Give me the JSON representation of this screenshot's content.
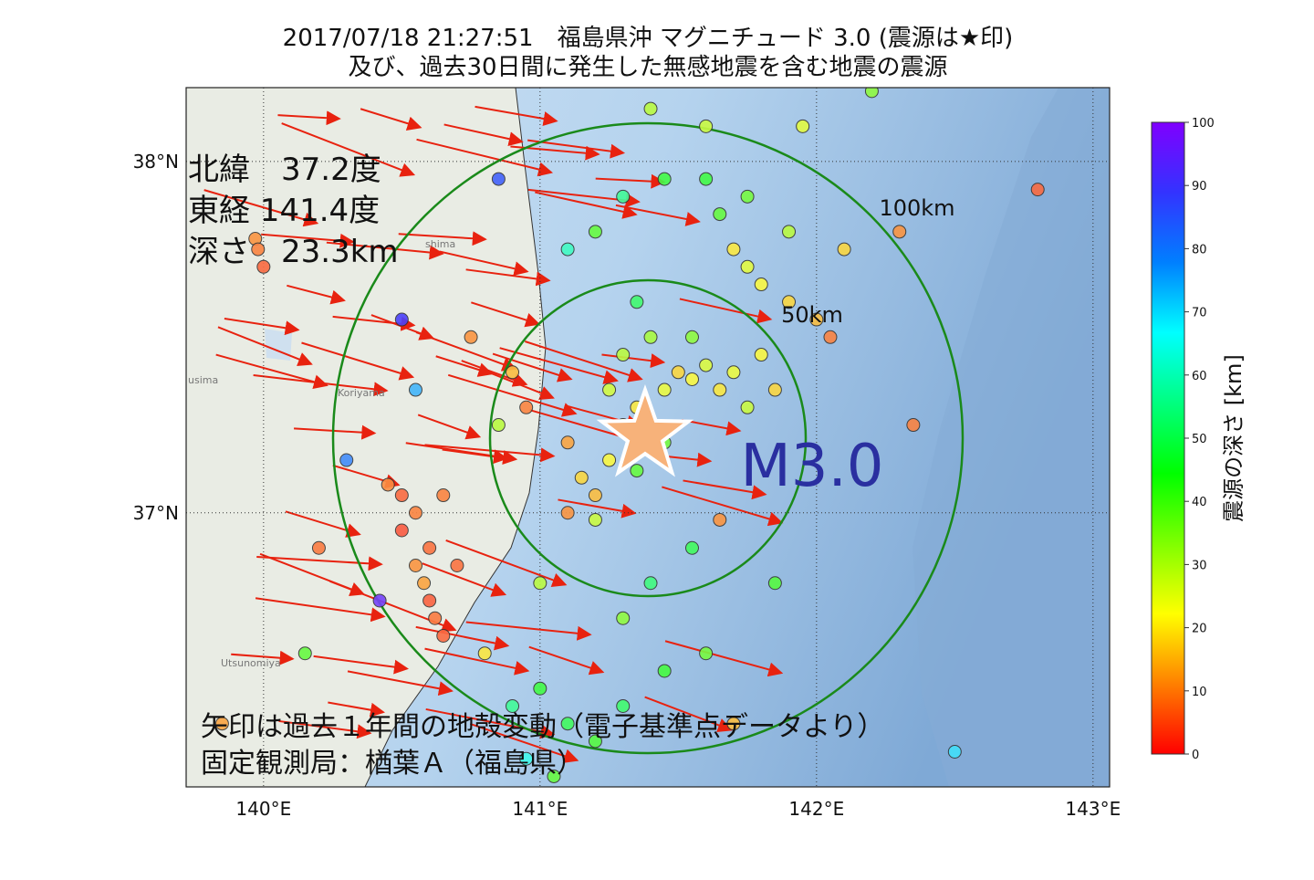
{
  "map": {
    "title": [
      "2017/07/18 21:27:51　福島県沖 マグニチュード 3.0 (震源は★印)",
      "及び、過去30日間に発生した無感地震を含む地震の震源"
    ],
    "info": [
      "北緯　37.2度",
      "東経 141.4度",
      "深さ　23.3km"
    ],
    "footer": [
      "矢印は過去１年間の地殻変動（電子基準点データより）",
      "固定観測局：楢葉Ａ（福島県）"
    ],
    "magnitude_label": "M3.0",
    "ring_labels": [
      "50km",
      "100km"
    ],
    "places": [
      "Koriyama",
      "Utsunomiya",
      "shima",
      "usima"
    ],
    "xlim": [
      139.72,
      143.06
    ],
    "ylim": [
      36.22,
      38.21
    ],
    "xticks": [
      {
        "value": 140,
        "label": "140°E"
      },
      {
        "value": 141,
        "label": "141°E"
      },
      {
        "value": 142,
        "label": "142°E"
      },
      {
        "value": 143,
        "label": "143°E"
      }
    ],
    "yticks": [
      {
        "value": 37,
        "label": "37°N"
      },
      {
        "value": 38,
        "label": "38°N"
      }
    ],
    "epicenter": {
      "lon": 141.38,
      "lat": 37.22
    },
    "colorbar": {
      "label": "震源の深さ [km]",
      "range": [
        0,
        100
      ],
      "ticks": [
        0,
        10,
        20,
        30,
        40,
        50,
        60,
        70,
        80,
        90,
        100
      ]
    },
    "quakes": [
      [
        141.25,
        37.15,
        22
      ],
      [
        141.3,
        37.25,
        25
      ],
      [
        141.35,
        37.3,
        20
      ],
      [
        141.45,
        37.35,
        24
      ],
      [
        141.5,
        37.4,
        18
      ],
      [
        141.55,
        37.38,
        22
      ],
      [
        141.6,
        37.42,
        26
      ],
      [
        141.65,
        37.35,
        20
      ],
      [
        141.7,
        37.4,
        24
      ],
      [
        141.75,
        37.3,
        28
      ],
      [
        141.2,
        37.05,
        15
      ],
      [
        141.15,
        37.1,
        18
      ],
      [
        141.1,
        37.2,
        12
      ],
      [
        141.3,
        37.45,
        30
      ],
      [
        141.4,
        37.5,
        32
      ],
      [
        141.55,
        37.5,
        35
      ],
      [
        141.8,
        37.45,
        22
      ],
      [
        141.85,
        37.35,
        18
      ],
      [
        141.25,
        37.35,
        27
      ],
      [
        141.35,
        37.12,
        40
      ],
      [
        141.45,
        37.2,
        38
      ],
      [
        141.1,
        37.0,
        10
      ],
      [
        141.2,
        36.98,
        28
      ],
      [
        141.7,
        37.75,
        20
      ],
      [
        141.75,
        37.7,
        25
      ],
      [
        141.8,
        37.65,
        22
      ],
      [
        141.9,
        37.6,
        18
      ],
      [
        142.0,
        37.55,
        15
      ],
      [
        141.65,
        37.85,
        40
      ],
      [
        141.75,
        37.9,
        38
      ],
      [
        142.05,
        37.5,
        8
      ],
      [
        142.1,
        37.75,
        18
      ],
      [
        141.9,
        37.8,
        30
      ],
      [
        141.6,
        37.95,
        45
      ],
      [
        141.95,
        38.1,
        25
      ],
      [
        142.3,
        37.8,
        10
      ],
      [
        142.8,
        37.92,
        5
      ],
      [
        142.35,
        37.25,
        8
      ],
      [
        142.2,
        38.2,
        35
      ],
      [
        140.5,
        37.05,
        5
      ],
      [
        140.55,
        37.0,
        8
      ],
      [
        140.6,
        36.9,
        6
      ],
      [
        140.55,
        36.85,
        10
      ],
      [
        140.6,
        36.75,
        4
      ],
      [
        140.62,
        36.7,
        7
      ],
      [
        140.58,
        36.8,
        12
      ],
      [
        140.65,
        36.65,
        5
      ],
      [
        140.5,
        36.95,
        3
      ],
      [
        140.45,
        37.08,
        9
      ],
      [
        140.7,
        36.85,
        6
      ],
      [
        140.65,
        37.05,
        8
      ],
      [
        139.97,
        37.78,
        10
      ],
      [
        140.0,
        37.7,
        5
      ],
      [
        139.98,
        37.75,
        8
      ],
      [
        140.3,
        37.15,
        80
      ],
      [
        140.5,
        37.55,
        90
      ],
      [
        140.55,
        37.35,
        75
      ],
      [
        140.85,
        37.95,
        85
      ],
      [
        140.42,
        36.75,
        95
      ],
      [
        141.0,
        36.5,
        45
      ],
      [
        141.1,
        36.4,
        48
      ],
      [
        141.2,
        36.35,
        42
      ],
      [
        140.9,
        36.45,
        55
      ],
      [
        141.3,
        36.45,
        50
      ],
      [
        141.45,
        36.55,
        44
      ],
      [
        141.6,
        36.6,
        38
      ],
      [
        141.7,
        36.4,
        15
      ],
      [
        140.95,
        36.3,
        65
      ],
      [
        141.05,
        36.25,
        40
      ],
      [
        141.4,
        36.8,
        52
      ],
      [
        141.55,
        36.9,
        48
      ],
      [
        141.85,
        36.8,
        42
      ],
      [
        141.3,
        36.7,
        35
      ],
      [
        141.0,
        36.8,
        30
      ],
      [
        140.8,
        36.6,
        20
      ],
      [
        141.65,
        36.98,
        10
      ],
      [
        141.4,
        38.15,
        30
      ],
      [
        141.6,
        38.1,
        28
      ],
      [
        141.3,
        37.9,
        55
      ],
      [
        141.45,
        37.95,
        45
      ],
      [
        141.1,
        37.75,
        60
      ],
      [
        141.2,
        37.8,
        40
      ],
      [
        141.35,
        37.6,
        50
      ],
      [
        142.5,
        36.32,
        70
      ],
      [
        140.75,
        37.5,
        10
      ],
      [
        140.9,
        37.4,
        15
      ],
      [
        140.85,
        37.25,
        30
      ],
      [
        140.95,
        37.3,
        8
      ],
      [
        140.2,
        36.9,
        7
      ],
      [
        139.85,
        36.4,
        12
      ],
      [
        140.15,
        36.6,
        40
      ]
    ]
  }
}
